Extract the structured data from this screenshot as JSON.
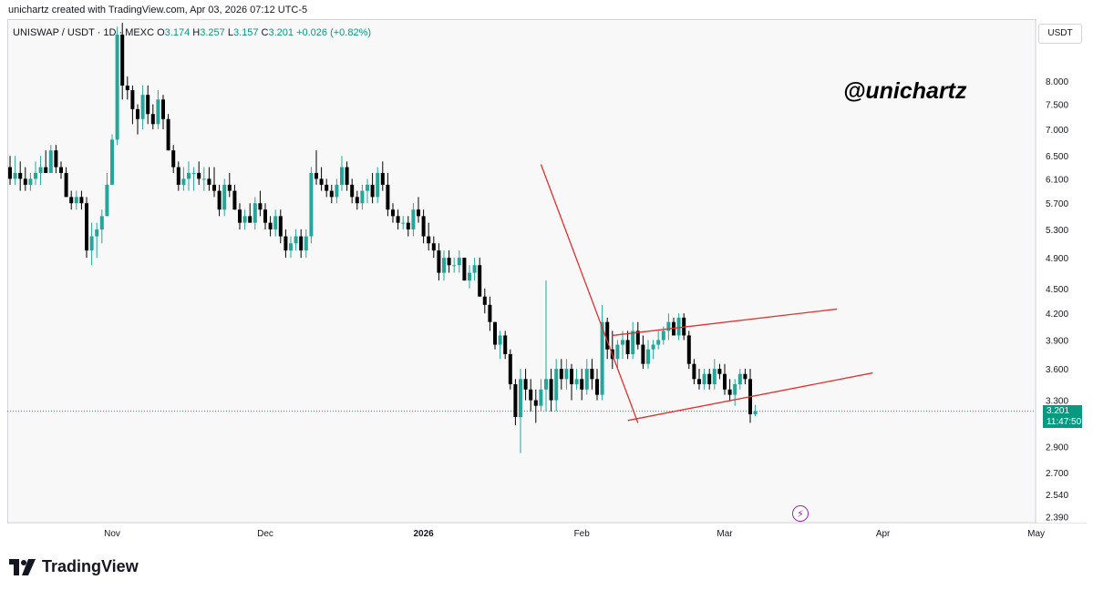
{
  "header": {
    "caption": "unichartz created with TradingView.com, Apr 03, 2026 07:12 UTC-5"
  },
  "symbol_bar": {
    "symbol": "UNISWAP / USDT · 1D · MEXC",
    "o_label": "O",
    "o_value": "3.174",
    "h_label": "H",
    "h_value": "3.257",
    "l_label": "L",
    "l_value": "3.157",
    "c_label": "C",
    "c_value": "3.201",
    "change": "+0.026 (+0.82%)"
  },
  "currency": "USDT",
  "watermark": "@unichartz",
  "last_price": {
    "price": "3.201",
    "countdown": "11:47:50"
  },
  "branding": {
    "name": "TradingView"
  },
  "colors": {
    "up": "#26a69a",
    "down": "#000000",
    "pattern_lines": "#e03131",
    "last_price_tag": "#089981",
    "event_badge": "#9c27b0"
  },
  "icons": {
    "logo": "tradingview-logo-icon",
    "event": "lightning-icon"
  },
  "chart_data": {
    "type": "candlestick",
    "title": "UNISWAP / USDT · 1D · MEXC",
    "scale": "log",
    "ylim": [
      2.35,
      9.5
    ],
    "y_ticks": [
      8.0,
      7.5,
      7.0,
      6.5,
      6.1,
      5.7,
      5.3,
      4.9,
      4.5,
      4.2,
      3.9,
      3.6,
      3.3,
      2.9,
      2.7,
      2.54,
      2.39
    ],
    "y_tick_labels": [
      "8.000",
      "7.500",
      "7.000",
      "6.500",
      "6.100",
      "5.700",
      "5.300",
      "4.900",
      "4.500",
      "4.200",
      "3.900",
      "3.600",
      "3.300",
      "2.900",
      "2.700",
      "2.540",
      "2.390"
    ],
    "x_ticks": [
      {
        "label": "Nov",
        "day": 20
      },
      {
        "label": "Dec",
        "day": 50
      },
      {
        "label": "2026",
        "day": 81
      },
      {
        "label": "Feb",
        "day": 112
      },
      {
        "label": "Mar",
        "day": 140
      },
      {
        "label": "Apr",
        "day": 171
      },
      {
        "label": "May",
        "day": 201
      }
    ],
    "candles": [
      [
        6.3,
        6.5,
        6.0,
        6.1
      ],
      [
        6.1,
        6.5,
        6.0,
        6.2
      ],
      [
        6.2,
        6.4,
        5.9,
        6.1
      ],
      [
        6.1,
        6.3,
        5.9,
        6.0
      ],
      [
        6.0,
        6.2,
        5.9,
        6.1
      ],
      [
        6.1,
        6.4,
        6.0,
        6.2
      ],
      [
        6.2,
        6.5,
        6.0,
        6.3
      ],
      [
        6.3,
        6.6,
        6.2,
        6.2
      ],
      [
        6.2,
        6.7,
        6.2,
        6.6
      ],
      [
        6.6,
        6.7,
        6.2,
        6.3
      ],
      [
        6.3,
        6.4,
        6.1,
        6.2
      ],
      [
        6.2,
        6.3,
        5.8,
        5.8
      ],
      [
        5.8,
        5.9,
        5.6,
        5.7
      ],
      [
        5.7,
        5.9,
        5.6,
        5.8
      ],
      [
        5.8,
        5.9,
        5.6,
        5.7
      ],
      [
        5.7,
        5.8,
        4.9,
        5.0
      ],
      [
        5.0,
        5.4,
        4.8,
        5.2
      ],
      [
        5.2,
        5.4,
        4.9,
        5.3
      ],
      [
        5.3,
        5.6,
        5.1,
        5.5
      ],
      [
        5.5,
        6.2,
        5.5,
        6.0
      ],
      [
        6.0,
        6.9,
        6.0,
        6.8
      ],
      [
        6.8,
        9.3,
        6.7,
        9.1
      ],
      [
        9.1,
        9.4,
        7.6,
        7.9
      ],
      [
        7.9,
        8.1,
        7.6,
        7.8
      ],
      [
        7.8,
        7.9,
        7.1,
        7.4
      ],
      [
        7.4,
        7.5,
        6.9,
        7.2
      ],
      [
        7.2,
        7.9,
        7.0,
        7.7
      ],
      [
        7.7,
        7.9,
        7.1,
        7.3
      ],
      [
        7.3,
        7.5,
        7.0,
        7.1
      ],
      [
        7.1,
        7.8,
        7.0,
        7.6
      ],
      [
        7.6,
        7.7,
        7.0,
        7.2
      ],
      [
        7.2,
        7.3,
        6.6,
        6.6
      ],
      [
        6.6,
        6.7,
        6.2,
        6.3
      ],
      [
        6.3,
        6.4,
        5.9,
        6.0
      ],
      [
        6.0,
        6.3,
        5.9,
        6.1
      ],
      [
        6.1,
        6.4,
        5.9,
        6.2
      ],
      [
        6.2,
        6.3,
        5.9,
        6.2
      ],
      [
        6.2,
        6.4,
        6.0,
        6.1
      ],
      [
        6.1,
        6.3,
        5.9,
        6.1
      ],
      [
        6.1,
        6.3,
        5.9,
        6.0
      ],
      [
        6.0,
        6.3,
        5.8,
        5.9
      ],
      [
        5.9,
        6.0,
        5.5,
        5.6
      ],
      [
        5.6,
        6.1,
        5.5,
        6.0
      ],
      [
        6.0,
        6.2,
        5.8,
        5.9
      ],
      [
        5.9,
        6.0,
        5.6,
        5.6
      ],
      [
        5.6,
        5.7,
        5.3,
        5.4
      ],
      [
        5.4,
        5.6,
        5.3,
        5.5
      ],
      [
        5.5,
        5.7,
        5.4,
        5.4
      ],
      [
        5.4,
        5.8,
        5.3,
        5.7
      ],
      [
        5.7,
        5.9,
        5.5,
        5.6
      ],
      [
        5.6,
        5.7,
        5.3,
        5.4
      ],
      [
        5.4,
        5.5,
        5.2,
        5.3
      ],
      [
        5.3,
        5.6,
        5.2,
        5.5
      ],
      [
        5.5,
        5.6,
        5.1,
        5.2
      ],
      [
        5.2,
        5.3,
        4.9,
        5.0
      ],
      [
        5.0,
        5.2,
        4.9,
        5.1
      ],
      [
        5.1,
        5.3,
        5.0,
        5.2
      ],
      [
        5.2,
        5.3,
        4.9,
        5.0
      ],
      [
        5.0,
        5.3,
        4.9,
        5.2
      ],
      [
        5.2,
        6.3,
        5.1,
        6.2
      ],
      [
        6.2,
        6.6,
        6.0,
        6.1
      ],
      [
        6.1,
        6.3,
        5.9,
        6.0
      ],
      [
        6.0,
        6.1,
        5.8,
        5.9
      ],
      [
        5.9,
        6.0,
        5.7,
        5.8
      ],
      [
        5.8,
        6.1,
        5.7,
        6.0
      ],
      [
        6.0,
        6.5,
        5.9,
        6.3
      ],
      [
        6.3,
        6.4,
        5.9,
        6.0
      ],
      [
        6.0,
        6.1,
        5.7,
        5.8
      ],
      [
        5.8,
        5.9,
        5.6,
        5.7
      ],
      [
        5.7,
        6.0,
        5.6,
        5.9
      ],
      [
        5.9,
        6.1,
        5.7,
        6.0
      ],
      [
        6.0,
        6.2,
        5.7,
        5.8
      ],
      [
        5.8,
        6.3,
        5.7,
        6.2
      ],
      [
        6.2,
        6.4,
        5.9,
        6.0
      ],
      [
        6.0,
        6.2,
        5.5,
        5.6
      ],
      [
        5.6,
        5.7,
        5.4,
        5.5
      ],
      [
        5.5,
        5.6,
        5.3,
        5.4
      ],
      [
        5.4,
        5.5,
        5.3,
        5.4
      ],
      [
        5.4,
        5.5,
        5.2,
        5.3
      ],
      [
        5.3,
        5.7,
        5.2,
        5.6
      ],
      [
        5.6,
        5.8,
        5.4,
        5.5
      ],
      [
        5.5,
        5.6,
        5.1,
        5.2
      ],
      [
        5.2,
        5.4,
        5.0,
        5.1
      ],
      [
        5.1,
        5.2,
        4.9,
        5.0
      ],
      [
        5.0,
        5.1,
        4.6,
        4.7
      ],
      [
        4.7,
        5.0,
        4.6,
        4.9
      ],
      [
        4.9,
        5.0,
        4.7,
        4.8
      ],
      [
        4.8,
        4.9,
        4.7,
        4.8
      ],
      [
        4.8,
        5.0,
        4.7,
        4.9
      ],
      [
        4.9,
        4.9,
        4.6,
        4.6
      ],
      [
        4.6,
        4.8,
        4.5,
        4.7
      ],
      [
        4.7,
        4.9,
        4.6,
        4.8
      ],
      [
        4.8,
        4.9,
        4.4,
        4.4
      ],
      [
        4.4,
        4.5,
        4.2,
        4.3
      ],
      [
        4.3,
        4.4,
        4.0,
        4.1
      ],
      [
        4.1,
        4.1,
        3.8,
        3.85
      ],
      [
        3.85,
        4.0,
        3.7,
        3.95
      ],
      [
        3.95,
        4.0,
        3.7,
        3.75
      ],
      [
        3.75,
        3.8,
        3.4,
        3.45
      ],
      [
        3.45,
        3.5,
        3.08,
        3.15
      ],
      [
        3.15,
        3.6,
        2.85,
        3.5
      ],
      [
        3.5,
        3.6,
        3.3,
        3.4
      ],
      [
        3.4,
        3.5,
        3.2,
        3.3
      ],
      [
        3.3,
        3.4,
        3.1,
        3.25
      ],
      [
        3.25,
        3.5,
        3.2,
        3.4
      ],
      [
        3.4,
        4.6,
        3.2,
        3.5
      ],
      [
        3.5,
        3.6,
        3.2,
        3.3
      ],
      [
        3.3,
        3.7,
        3.2,
        3.6
      ],
      [
        3.6,
        3.7,
        3.4,
        3.5
      ],
      [
        3.5,
        3.7,
        3.4,
        3.6
      ],
      [
        3.6,
        3.65,
        3.3,
        3.45
      ],
      [
        3.45,
        3.6,
        3.4,
        3.5
      ],
      [
        3.5,
        3.6,
        3.3,
        3.4
      ],
      [
        3.4,
        3.7,
        3.35,
        3.6
      ],
      [
        3.6,
        3.7,
        3.4,
        3.5
      ],
      [
        3.5,
        3.6,
        3.3,
        3.35
      ],
      [
        3.35,
        4.3,
        3.3,
        4.1
      ],
      [
        4.1,
        4.15,
        3.7,
        3.8
      ],
      [
        3.8,
        4.0,
        3.6,
        3.7
      ],
      [
        3.7,
        3.9,
        3.6,
        3.85
      ],
      [
        3.85,
        4.0,
        3.7,
        3.9
      ],
      [
        3.9,
        4.0,
        3.7,
        3.75
      ],
      [
        3.75,
        4.1,
        3.7,
        4.0
      ],
      [
        4.0,
        4.1,
        3.8,
        3.85
      ],
      [
        3.85,
        3.95,
        3.6,
        3.65
      ],
      [
        3.65,
        3.9,
        3.6,
        3.8
      ],
      [
        3.8,
        3.9,
        3.7,
        3.85
      ],
      [
        3.85,
        4.0,
        3.8,
        3.9
      ],
      [
        3.9,
        4.05,
        3.85,
        4.0
      ],
      [
        4.0,
        4.2,
        3.9,
        4.1
      ],
      [
        4.1,
        4.15,
        3.95,
        3.95
      ],
      [
        3.95,
        4.2,
        3.9,
        4.15
      ],
      [
        4.15,
        4.2,
        3.9,
        3.95
      ],
      [
        3.95,
        4.0,
        3.6,
        3.65
      ],
      [
        3.65,
        3.7,
        3.45,
        3.5
      ],
      [
        3.5,
        3.6,
        3.4,
        3.45
      ],
      [
        3.45,
        3.6,
        3.4,
        3.55
      ],
      [
        3.55,
        3.6,
        3.4,
        3.45
      ],
      [
        3.45,
        3.7,
        3.4,
        3.6
      ],
      [
        3.6,
        3.65,
        3.5,
        3.55
      ],
      [
        3.55,
        3.65,
        3.35,
        3.4
      ],
      [
        3.4,
        3.5,
        3.3,
        3.35
      ],
      [
        3.35,
        3.5,
        3.25,
        3.45
      ],
      [
        3.45,
        3.6,
        3.4,
        3.55
      ],
      [
        3.55,
        3.6,
        3.45,
        3.5
      ],
      [
        3.5,
        3.6,
        3.1,
        3.174
      ],
      [
        3.174,
        3.257,
        3.157,
        3.201
      ]
    ],
    "pattern_lines": [
      {
        "name": "downtrend-line",
        "from": [
          104,
          6.35
        ],
        "to": [
          123,
          3.1
        ]
      },
      {
        "name": "upper-channel-line",
        "from": [
          118,
          3.95
        ],
        "to": [
          162,
          4.25
        ]
      },
      {
        "name": "lower-channel-line",
        "from": [
          121,
          3.12
        ],
        "to": [
          169,
          3.56
        ]
      }
    ],
    "last_price": 3.201
  }
}
